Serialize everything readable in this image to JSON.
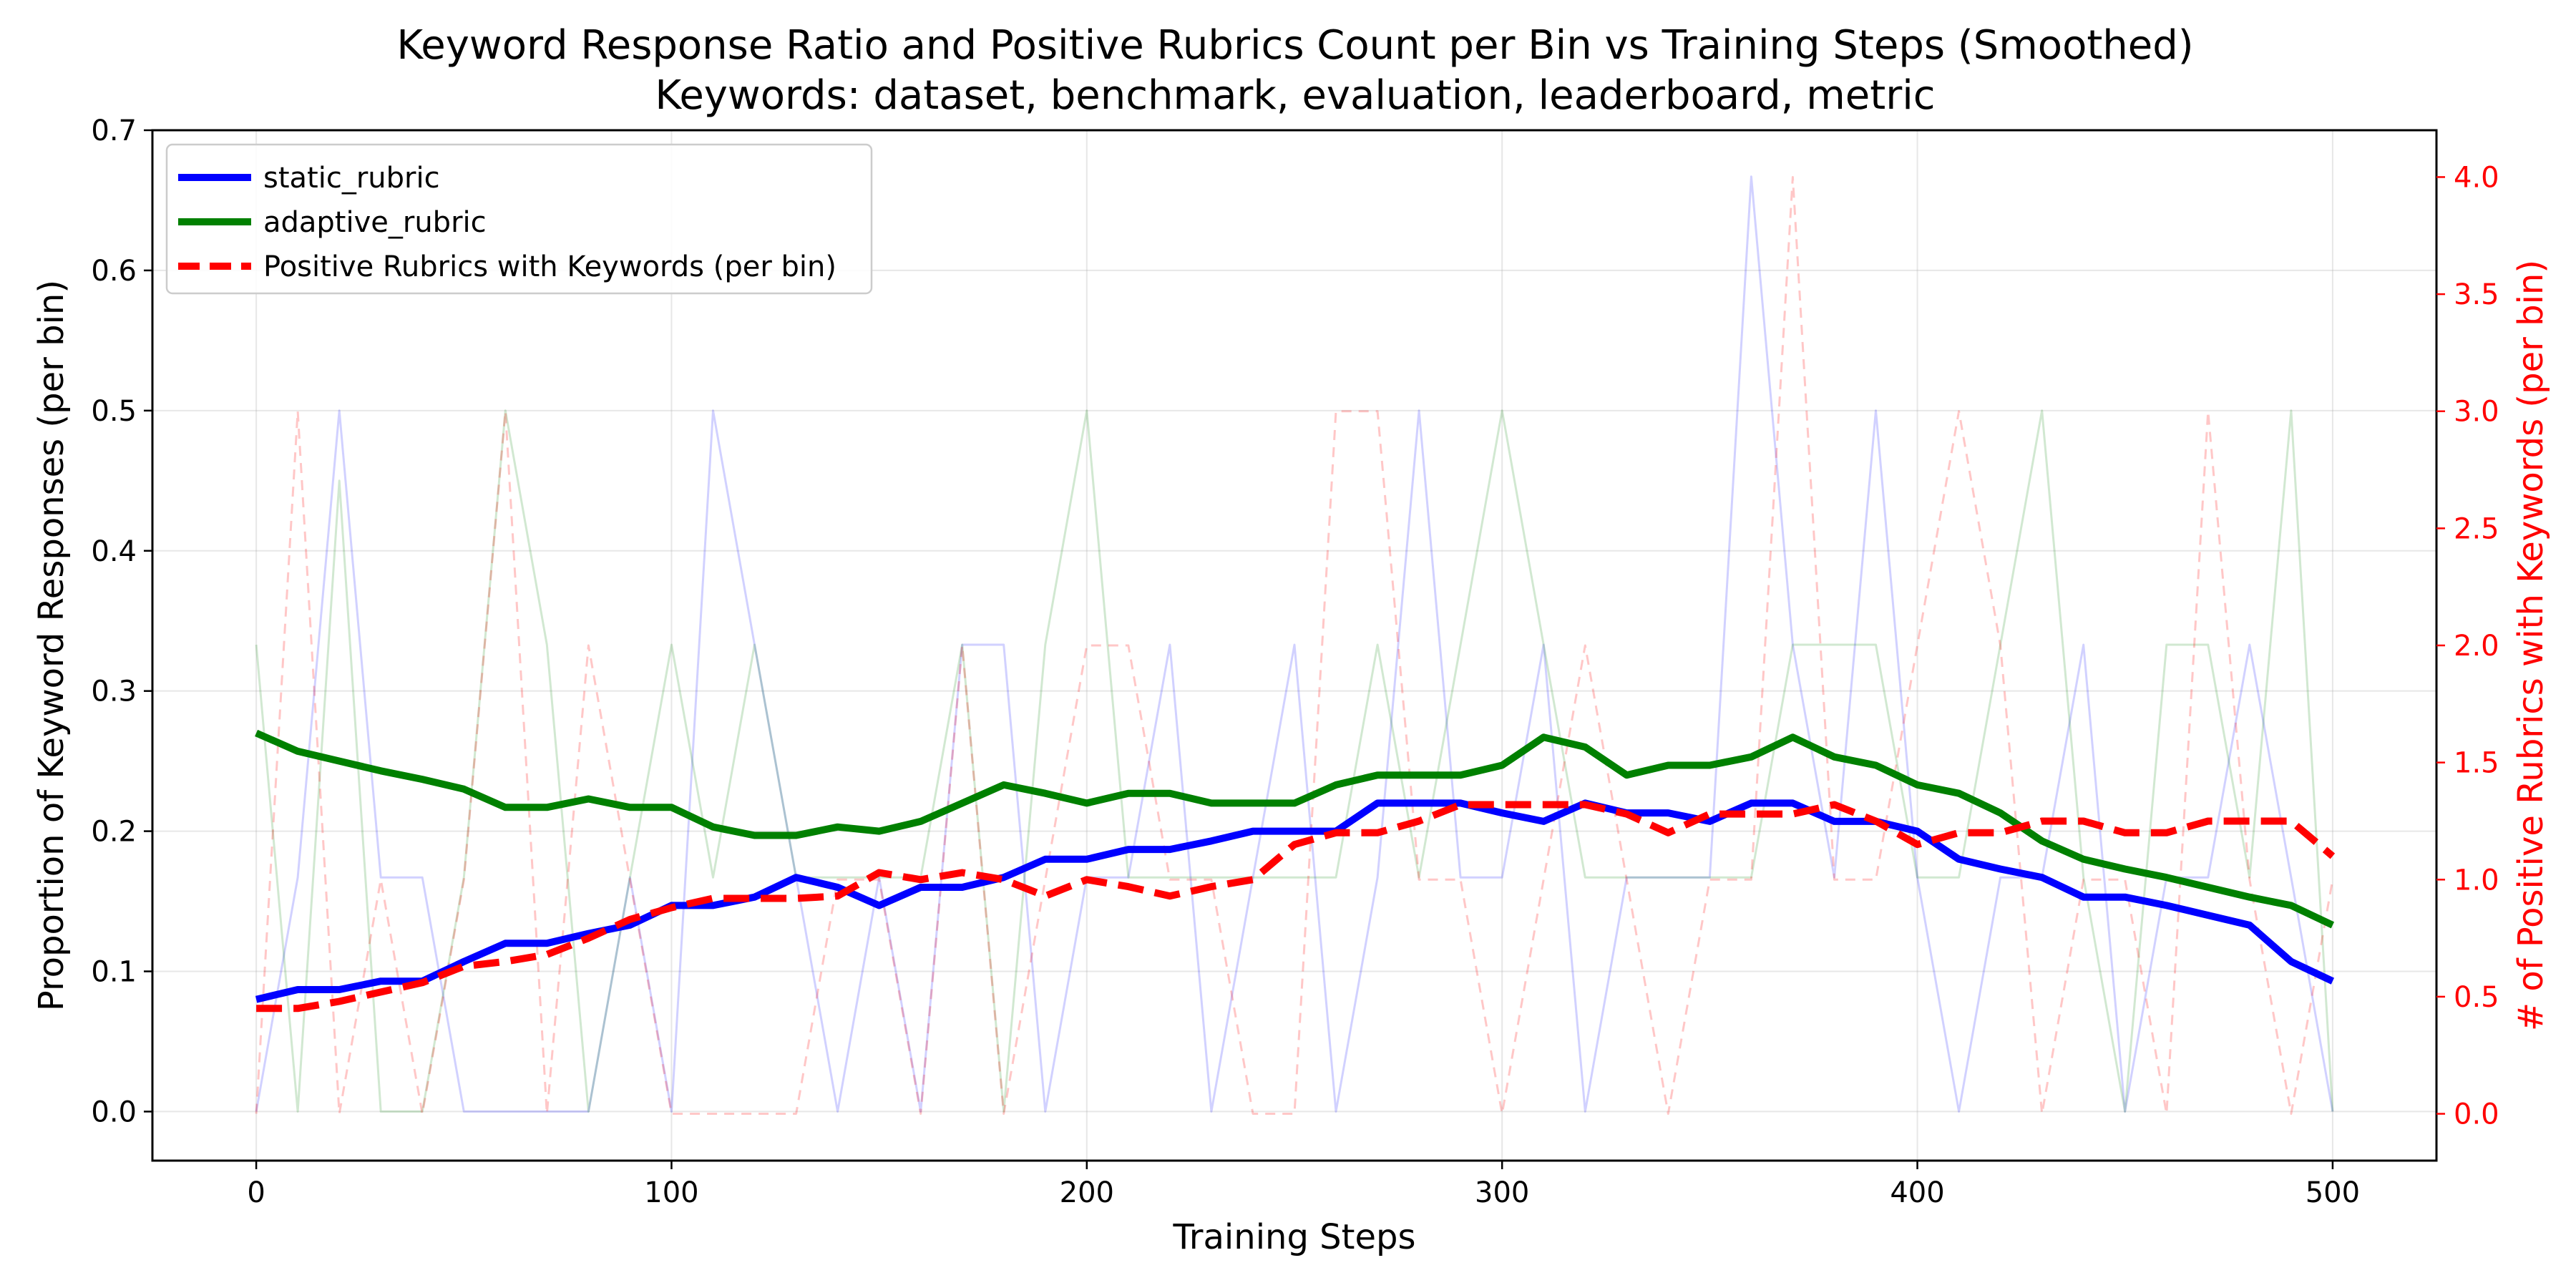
{
  "chart_data": {
    "type": "line",
    "title": "Keyword Response Ratio and Positive Rubrics Count per Bin vs Training Steps (Smoothed)",
    "subtitle": "Keywords: dataset, benchmark, evaluation, leaderboard, metric",
    "xlabel": "Training Steps",
    "ylabel": "Proportion of Keyword Responses (per bin)",
    "ylabel_right": "# of Positive Rubrics with Keywords (per bin)",
    "xlim": [
      -25,
      525
    ],
    "ylim": [
      -0.035,
      0.7
    ],
    "ylim_right": [
      -0.2,
      4.2
    ],
    "x_ticks": [
      0,
      100,
      200,
      300,
      400,
      500
    ],
    "x_tick_labels": [
      "0",
      "100",
      "200",
      "300",
      "400",
      "500"
    ],
    "y_ticks": [
      0.0,
      0.1,
      0.2,
      0.3,
      0.4,
      0.5,
      0.6,
      0.7
    ],
    "y_tick_labels": [
      "0.0",
      "0.1",
      "0.2",
      "0.3",
      "0.4",
      "0.5",
      "0.6",
      "0.7"
    ],
    "y_right_ticks": [
      0.0,
      0.5,
      1.0,
      1.5,
      2.0,
      2.5,
      3.0,
      3.5,
      4.0
    ],
    "y_right_tick_labels": [
      "0.0",
      "0.5",
      "1.0",
      "1.5",
      "2.0",
      "2.5",
      "3.0",
      "3.5",
      "4.0"
    ],
    "grid": true,
    "legend_position": "upper-left",
    "right_axis_color": "#ff0000",
    "x": [
      0,
      10,
      20,
      30,
      40,
      50,
      60,
      70,
      80,
      90,
      100,
      110,
      120,
      130,
      140,
      150,
      160,
      170,
      180,
      190,
      200,
      210,
      220,
      230,
      240,
      250,
      260,
      270,
      280,
      290,
      300,
      310,
      320,
      330,
      340,
      350,
      360,
      370,
      380,
      390,
      400,
      410,
      420,
      430,
      440,
      450,
      460,
      470,
      480,
      490,
      500
    ],
    "series": [
      {
        "name": "static_rubric",
        "axis": "left",
        "color": "#0000ff",
        "style": "solid",
        "in_legend": true,
        "values": [
          0.08,
          0.087,
          0.087,
          0.093,
          0.093,
          0.107,
          0.12,
          0.12,
          0.127,
          0.133,
          0.147,
          0.147,
          0.153,
          0.167,
          0.16,
          0.147,
          0.16,
          0.16,
          0.167,
          0.18,
          0.18,
          0.187,
          0.187,
          0.193,
          0.2,
          0.2,
          0.2,
          0.22,
          0.22,
          0.22,
          0.213,
          0.207,
          0.22,
          0.213,
          0.213,
          0.207,
          0.22,
          0.22,
          0.207,
          0.207,
          0.2,
          0.18,
          0.173,
          0.167,
          0.153,
          0.153,
          0.147,
          0.14,
          0.133,
          0.107,
          0.093
        ]
      },
      {
        "name": "adaptive_rubric",
        "axis": "left",
        "color": "#008000",
        "style": "solid",
        "in_legend": true,
        "values": [
          0.27,
          0.257,
          0.25,
          0.243,
          0.237,
          0.23,
          0.217,
          0.217,
          0.223,
          0.217,
          0.217,
          0.203,
          0.197,
          0.197,
          0.203,
          0.2,
          0.207,
          0.22,
          0.233,
          0.227,
          0.22,
          0.227,
          0.227,
          0.22,
          0.22,
          0.22,
          0.233,
          0.24,
          0.24,
          0.24,
          0.247,
          0.267,
          0.26,
          0.24,
          0.247,
          0.247,
          0.253,
          0.267,
          0.253,
          0.247,
          0.233,
          0.227,
          0.213,
          0.193,
          0.18,
          0.173,
          0.167,
          0.16,
          0.153,
          0.147,
          0.133
        ]
      },
      {
        "name": "Positive Rubrics with Keywords (per bin)",
        "axis": "right",
        "color": "#ff0000",
        "style": "dashed",
        "in_legend": true,
        "values": [
          0.45,
          0.45,
          0.48,
          0.52,
          0.56,
          0.63,
          0.65,
          0.68,
          0.75,
          0.83,
          0.88,
          0.92,
          0.92,
          0.92,
          0.93,
          1.03,
          1.0,
          1.03,
          1.0,
          0.93,
          1.0,
          0.97,
          0.93,
          0.97,
          1.0,
          1.15,
          1.2,
          1.2,
          1.25,
          1.32,
          1.32,
          1.32,
          1.32,
          1.28,
          1.2,
          1.28,
          1.28,
          1.28,
          1.32,
          1.25,
          1.15,
          1.2,
          1.2,
          1.25,
          1.25,
          1.2,
          1.2,
          1.25,
          1.25,
          1.25,
          1.1
        ]
      },
      {
        "name": "static_rubric raw",
        "axis": "left",
        "color": "#0000ff",
        "style": "faint",
        "in_legend": false,
        "values": [
          0.0,
          0.167,
          0.5,
          0.167,
          0.167,
          0.0,
          0.0,
          0.0,
          0.0,
          0.167,
          0.0,
          0.5,
          0.333,
          0.167,
          0.0,
          0.167,
          0.0,
          0.333,
          0.333,
          0.0,
          0.167,
          0.167,
          0.333,
          0.0,
          0.167,
          0.333,
          0.0,
          0.167,
          0.5,
          0.167,
          0.167,
          0.333,
          0.0,
          0.167,
          0.167,
          0.167,
          0.667,
          0.333,
          0.167,
          0.5,
          0.167,
          0.0,
          0.167,
          0.167,
          0.333,
          0.0,
          0.167,
          0.167,
          0.333,
          0.167,
          0.0
        ]
      },
      {
        "name": "adaptive_rubric raw",
        "axis": "left",
        "color": "#008000",
        "style": "faint",
        "in_legend": false,
        "values": [
          0.333,
          0.0,
          0.45,
          0.0,
          0.0,
          0.167,
          0.5,
          0.333,
          0.0,
          0.167,
          0.333,
          0.167,
          0.333,
          0.167,
          0.167,
          0.167,
          0.167,
          0.333,
          0.0,
          0.333,
          0.5,
          0.167,
          0.167,
          0.167,
          0.167,
          0.167,
          0.167,
          0.333,
          0.167,
          0.333,
          0.5,
          0.333,
          0.167,
          0.167,
          0.167,
          0.167,
          0.167,
          0.333,
          0.333,
          0.333,
          0.167,
          0.167,
          0.333,
          0.5,
          0.167,
          0.0,
          0.333,
          0.333,
          0.167,
          0.5,
          0.0
        ]
      },
      {
        "name": "Positive Rubrics raw",
        "axis": "right",
        "color": "#ff0000",
        "style": "faint-dashed",
        "in_legend": false,
        "values": [
          0.0,
          3.0,
          0.0,
          1.0,
          0.0,
          1.0,
          3.0,
          0.0,
          2.0,
          1.0,
          0.0,
          0.0,
          0.0,
          0.0,
          1.0,
          1.0,
          0.0,
          2.0,
          0.0,
          1.0,
          2.0,
          2.0,
          1.0,
          1.0,
          0.0,
          0.0,
          3.0,
          3.0,
          1.0,
          1.0,
          0.0,
          1.0,
          2.0,
          1.0,
          0.0,
          1.0,
          1.0,
          4.0,
          1.0,
          1.0,
          2.0,
          3.0,
          2.0,
          0.0,
          1.0,
          1.0,
          0.0,
          3.0,
          1.0,
          0.0,
          1.0
        ]
      }
    ]
  }
}
